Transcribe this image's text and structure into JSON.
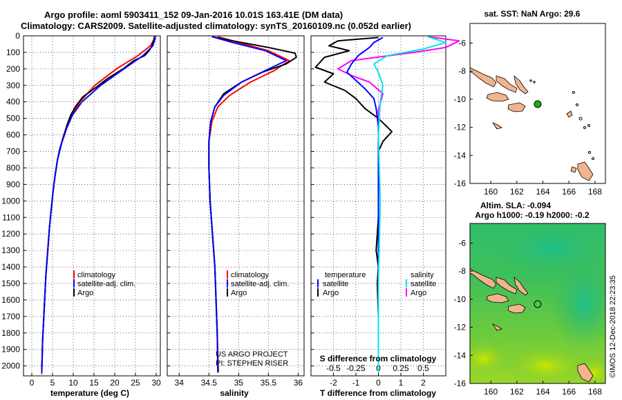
{
  "header": {
    "line1": "Argo profile: aoml 5903411_152 09-Jan-2016 10.01S 163.41E (DM data)",
    "line2": "Climatology: CARS2009. Satellite-adjusted climatology: synTS_20160109.nc (0.052d earlier)"
  },
  "colors": {
    "climatology": "#ff0000",
    "satellite": "#0000ff",
    "argo": "#000000",
    "sat_salinity": "#00e5e5",
    "argo_salinity": "#ff00ff",
    "land": "#f2b48c",
    "grid": "#000000"
  },
  "depth_axis": {
    "ticks": [
      0,
      100,
      200,
      300,
      400,
      500,
      600,
      700,
      800,
      900,
      1000,
      1100,
      1200,
      1300,
      1400,
      1500,
      1600,
      1700,
      1800,
      1900,
      2000
    ],
    "ylim": [
      2060,
      0
    ]
  },
  "panel_temperature": {
    "xlabel": "temperature (deg C)",
    "xticks": [
      0,
      5,
      10,
      15,
      20,
      25,
      30
    ],
    "xlim": [
      -2,
      31
    ],
    "legend": [
      "climatology",
      "satellite-adj. clim.",
      "Argo"
    ]
  },
  "panel_salinity": {
    "xlabel": "salinity",
    "xticks": [
      "34",
      "34.5",
      "35",
      "35.5",
      "36"
    ],
    "xlim": [
      33.8,
      36.1
    ],
    "legend": [
      "climatology",
      "satellite-adj. clim.",
      "Argo"
    ],
    "credit1": "US ARGO PROJECT",
    "credit2": "PI: STEPHEN RISER"
  },
  "panel_difference": {
    "xlabel": "T difference from climatology",
    "top_label": "S difference from climatology",
    "t_ticks": [
      "-2",
      "-1",
      "0",
      "1",
      "2"
    ],
    "s_ticks": [
      "-0.5",
      "-0.25",
      "0",
      "0.25",
      "0.5"
    ],
    "xlim": [
      -3,
      3
    ],
    "legend_temp_title": "temperature",
    "legend_sal_title": "salinity",
    "legend_sat": "satellite",
    "legend_argo": "Argo"
  },
  "map_top": {
    "title": "sat. SST: NaN Argo: 29.6",
    "xticks": [
      "160",
      "162",
      "164",
      "166",
      "168"
    ],
    "yticks": [
      "-6",
      "-8",
      "-10",
      "-12",
      "-14",
      "-16"
    ]
  },
  "map_bottom": {
    "title1": "Altim. SLA: -0.094",
    "title2": "Argo h1000: -0.19 h2000: -0.2",
    "xticks": [
      "160",
      "162",
      "164",
      "166",
      "168"
    ],
    "yticks": [
      "-6",
      "-8",
      "-10",
      "-12",
      "-14",
      "-16"
    ],
    "stamp": "©IMOS 12-Dec-2018 22:23:35"
  },
  "chart_data": [
    {
      "type": "line",
      "xlabel": "temperature (deg C)",
      "series": [
        {
          "name": "climatology",
          "color": "#ff0000",
          "points": [
            [
              29.6,
              0
            ],
            [
              29.5,
              20
            ],
            [
              28.6,
              60
            ],
            [
              25.6,
              120
            ],
            [
              20.4,
              200
            ],
            [
              15.2,
              300
            ],
            [
              11.6,
              400
            ],
            [
              9.7,
              480
            ],
            [
              8.4,
              560
            ],
            [
              7.2,
              650
            ],
            [
              6.2,
              750
            ],
            [
              5.6,
              850
            ],
            [
              5.1,
              950
            ],
            [
              4.7,
              1050
            ],
            [
              4.3,
              1150
            ],
            [
              4.0,
              1250
            ],
            [
              3.7,
              1350
            ],
            [
              3.4,
              1450
            ],
            [
              3.2,
              1550
            ],
            [
              3.0,
              1650
            ],
            [
              2.8,
              1750
            ],
            [
              2.6,
              1850
            ],
            [
              2.5,
              1950
            ],
            [
              2.4,
              2050
            ]
          ]
        },
        {
          "name": "satellite-adj. clim.",
          "color": "#0000ff",
          "points": [
            [
              29.8,
              0
            ],
            [
              29.7,
              20
            ],
            [
              29.2,
              60
            ],
            [
              26.8,
              120
            ],
            [
              22.2,
              200
            ],
            [
              16.6,
              300
            ],
            [
              12.1,
              400
            ],
            [
              9.8,
              480
            ],
            [
              8.4,
              560
            ],
            [
              7.2,
              650
            ],
            [
              6.2,
              750
            ],
            [
              5.6,
              850
            ],
            [
              5.1,
              950
            ],
            [
              4.7,
              1050
            ],
            [
              4.3,
              1150
            ],
            [
              4.0,
              1250
            ],
            [
              3.7,
              1350
            ],
            [
              3.4,
              1450
            ],
            [
              3.2,
              1550
            ],
            [
              3.0,
              1650
            ],
            [
              2.8,
              1750
            ],
            [
              2.6,
              1850
            ],
            [
              2.5,
              1950
            ],
            [
              2.4,
              2040
            ]
          ]
        },
        {
          "name": "Argo",
          "color": "#000000",
          "points": [
            [
              29.6,
              5
            ],
            [
              29.4,
              30
            ],
            [
              29.0,
              60
            ],
            [
              28.3,
              90
            ],
            [
              27.2,
              120
            ],
            [
              24.6,
              150
            ],
            [
              22.0,
              200
            ],
            [
              18.2,
              260
            ],
            [
              15.6,
              310
            ],
            [
              12.3,
              370
            ],
            [
              10.5,
              430
            ],
            [
              9.4,
              480
            ],
            [
              8.5,
              540
            ],
            [
              7.5,
              620
            ],
            [
              6.6,
              700
            ],
            [
              6.0,
              780
            ],
            [
              5.6,
              850
            ],
            [
              5.1,
              950
            ],
            [
              4.7,
              1050
            ],
            [
              4.3,
              1150
            ],
            [
              4.0,
              1250
            ],
            [
              3.7,
              1350
            ],
            [
              3.4,
              1450
            ],
            [
              3.2,
              1550
            ],
            [
              3.0,
              1650
            ],
            [
              2.8,
              1750
            ],
            [
              2.6,
              1850
            ],
            [
              2.5,
              1950
            ],
            [
              2.4,
              2020
            ]
          ]
        }
      ]
    },
    {
      "type": "line",
      "xlabel": "salinity",
      "series": [
        {
          "name": "climatology",
          "color": "#ff0000",
          "points": [
            [
              34.65,
              5
            ],
            [
              35.0,
              40
            ],
            [
              35.5,
              90
            ],
            [
              35.85,
              150
            ],
            [
              35.6,
              210
            ],
            [
              35.2,
              280
            ],
            [
              34.85,
              360
            ],
            [
              34.65,
              430
            ],
            [
              34.55,
              520
            ],
            [
              34.5,
              640
            ],
            [
              34.5,
              800
            ],
            [
              34.52,
              1000
            ],
            [
              34.56,
              1200
            ],
            [
              34.6,
              1400
            ],
            [
              34.62,
              1600
            ],
            [
              34.64,
              1800
            ],
            [
              34.66,
              2040
            ]
          ]
        },
        {
          "name": "satellite-adj. clim.",
          "color": "#0000ff",
          "points": [
            [
              34.55,
              5
            ],
            [
              34.9,
              40
            ],
            [
              35.45,
              90
            ],
            [
              35.8,
              150
            ],
            [
              35.45,
              210
            ],
            [
              35.05,
              280
            ],
            [
              34.75,
              360
            ],
            [
              34.6,
              430
            ],
            [
              34.53,
              520
            ],
            [
              34.5,
              640
            ],
            [
              34.5,
              800
            ],
            [
              34.52,
              1000
            ],
            [
              34.56,
              1200
            ],
            [
              34.6,
              1400
            ],
            [
              34.62,
              1600
            ],
            [
              34.64,
              1800
            ],
            [
              34.65,
              2040
            ]
          ]
        },
        {
          "name": "Argo",
          "color": "#000000",
          "points": [
            [
              34.55,
              5
            ],
            [
              34.9,
              30
            ],
            [
              35.5,
              70
            ],
            [
              35.95,
              105
            ],
            [
              35.97,
              130
            ],
            [
              35.8,
              170
            ],
            [
              35.4,
              220
            ],
            [
              35.05,
              280
            ],
            [
              34.75,
              350
            ],
            [
              34.6,
              430
            ],
            [
              34.53,
              520
            ],
            [
              34.5,
              640
            ],
            [
              34.5,
              800
            ],
            [
              34.52,
              1000
            ],
            [
              34.56,
              1200
            ],
            [
              34.6,
              1400
            ],
            [
              34.62,
              1600
            ],
            [
              34.64,
              1800
            ],
            [
              34.65,
              2020
            ]
          ]
        }
      ]
    },
    {
      "type": "line",
      "xlabel": "T difference from climatology",
      "x2label": "S difference from climatology",
      "series": [
        {
          "name": "temperature satellite",
          "color": "#0000ff",
          "points": [
            [
              0.2,
              10
            ],
            [
              -0.2,
              40
            ],
            [
              -0.4,
              70
            ],
            [
              -0.9,
              120
            ],
            [
              -1.2,
              170
            ],
            [
              -1.4,
              220
            ],
            [
              -1.0,
              270
            ],
            [
              -0.6,
              320
            ],
            [
              -0.2,
              380
            ],
            [
              -0.1,
              440
            ],
            [
              0.0,
              550
            ],
            [
              0.0,
              700
            ],
            [
              0.0,
              1000
            ],
            [
              0.0,
              1500
            ],
            [
              0.0,
              2040
            ]
          ]
        },
        {
          "name": "temperature Argo",
          "color": "#000000",
          "points": [
            [
              0.0,
              10
            ],
            [
              -1.8,
              30
            ],
            [
              -2.2,
              60
            ],
            [
              -1.3,
              90
            ],
            [
              -2.4,
              130
            ],
            [
              -2.8,
              190
            ],
            [
              -2.0,
              230
            ],
            [
              -2.4,
              280
            ],
            [
              -1.5,
              330
            ],
            [
              -1.0,
              380
            ],
            [
              -0.6,
              440
            ],
            [
              0.0,
              500
            ],
            [
              0.3,
              540
            ],
            [
              0.6,
              580
            ],
            [
              0.2,
              640
            ],
            [
              0.0,
              700
            ],
            [
              0.0,
              900
            ],
            [
              0.0,
              1100
            ],
            [
              -0.1,
              1300
            ],
            [
              0.0,
              1400
            ],
            [
              -0.05,
              1500
            ],
            [
              0.0,
              1700
            ],
            [
              0.0,
              2020
            ]
          ]
        },
        {
          "name": "salinity satellite",
          "color": "#00e5e5",
          "points": [
            [
              0.55,
              5
            ],
            [
              0.75,
              40
            ],
            [
              0.5,
              80
            ],
            [
              0.1,
              120
            ],
            [
              -0.05,
              170
            ],
            [
              0.0,
              220
            ],
            [
              0.05,
              300
            ],
            [
              0.02,
              400
            ],
            [
              0.0,
              600
            ],
            [
              0.02,
              1000
            ],
            [
              0.0,
              1500
            ],
            [
              0.0,
              2040
            ]
          ]
        },
        {
          "name": "salinity Argo",
          "color": "#ff00ff",
          "points": [
            [
              0.55,
              5
            ],
            [
              0.9,
              30
            ],
            [
              0.75,
              70
            ],
            [
              0.4,
              100
            ],
            [
              -0.3,
              150
            ],
            [
              -0.45,
              200
            ],
            [
              -0.3,
              240
            ],
            [
              -0.1,
              280
            ],
            [
              0.05,
              350
            ],
            [
              0.0,
              450
            ],
            [
              0.0,
              600
            ],
            [
              0.0,
              800
            ],
            [
              0.0,
              1000
            ],
            [
              0.0,
              1400
            ],
            [
              0.0,
              1600
            ],
            [
              0.0,
              2020
            ]
          ]
        }
      ]
    }
  ]
}
